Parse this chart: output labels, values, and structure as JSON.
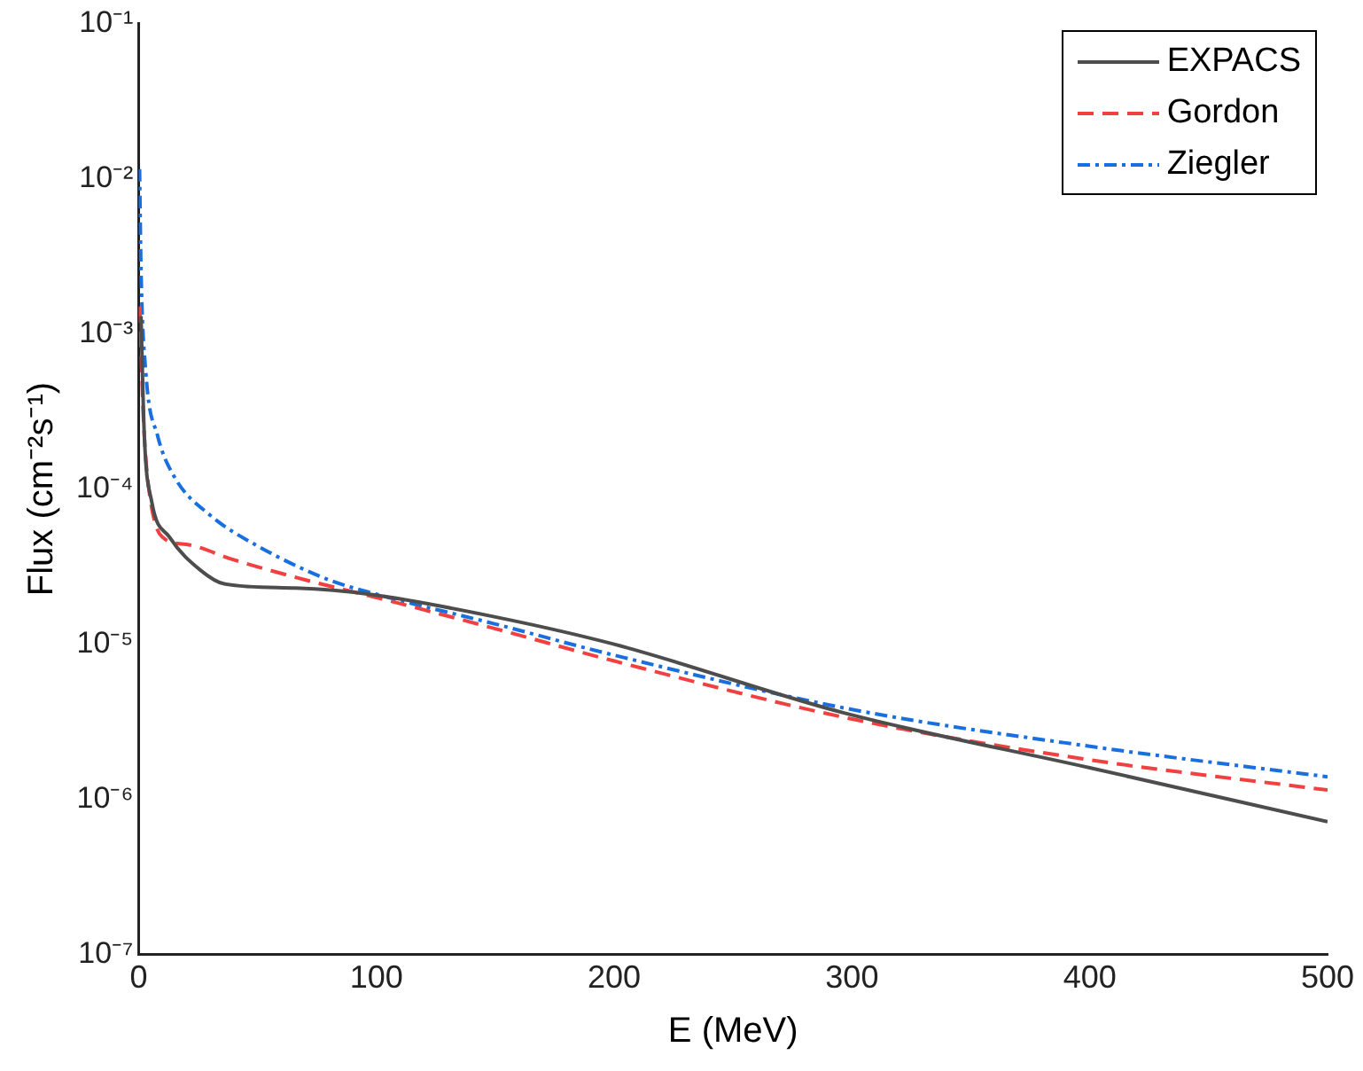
{
  "chart_data": {
    "type": "line",
    "xlabel": "E (MeV)",
    "ylabel": "Flux (cm⁻²s⁻¹)",
    "log": "y",
    "grid": false,
    "legend": "top right",
    "marker": "none",
    "xlim": [
      0,
      500
    ],
    "xticks": [
      0,
      100,
      200,
      300,
      400,
      500
    ],
    "ylim": [
      1e-07,
      0.1
    ],
    "yticks": [
      {
        "value": 1e-07,
        "label": "10⁻⁷"
      },
      {
        "value": 1e-06,
        "label": "10⁻⁶"
      },
      {
        "value": 1e-05,
        "label": "10⁻⁵"
      },
      {
        "value": 0.0001,
        "label": "10⁻⁴"
      },
      {
        "value": 0.001,
        "label": "10⁻³"
      },
      {
        "value": 0.01,
        "label": "10⁻²"
      },
      {
        "value": 0.1,
        "label": "10⁻¹"
      }
    ],
    "series": [
      {
        "name": "EXPACS",
        "color": "#4d4d4d",
        "line_style": "solid",
        "x": [
          1,
          2.4,
          5.5,
          13,
          26,
          36,
          66,
          97,
          150,
          200,
          297,
          400,
          500
        ],
        "values": [
          0.0013,
          0.00022,
          8.3e-05,
          4.9e-05,
          3e-05,
          2.45e-05,
          2.3e-05,
          2.1e-05,
          1.5e-05,
          1e-05,
          3.6e-06,
          1.6e-06,
          7.2e-07
        ]
      },
      {
        "name": "Gordon",
        "color": "#f04040",
        "line_style": "dashed",
        "x": [
          0.5,
          2,
          4,
          10,
          20,
          40,
          70,
          100,
          150,
          200,
          300,
          400,
          500
        ],
        "values": [
          0.0015,
          0.00029,
          0.00011,
          4.9e-05,
          4.4e-05,
          3.5e-05,
          2.6e-05,
          2e-05,
          1.26e-05,
          7.8e-06,
          3.3e-06,
          1.8e-06,
          1.15e-06
        ]
      },
      {
        "name": "Ziegler",
        "color": "#1a6fdf",
        "line_style": "dotted",
        "x": [
          0.4,
          1,
          3,
          8,
          15,
          30,
          50,
          80,
          100,
          150,
          200,
          300,
          400,
          500
        ],
        "values": [
          0.0115,
          0.0026,
          0.00057,
          0.00022,
          0.00012,
          6.8e-05,
          4.3e-05,
          2.6e-05,
          2.1e-05,
          1.35e-05,
          8.5e-06,
          3.8e-06,
          2.2e-06,
          1.4e-06
        ]
      }
    ]
  }
}
